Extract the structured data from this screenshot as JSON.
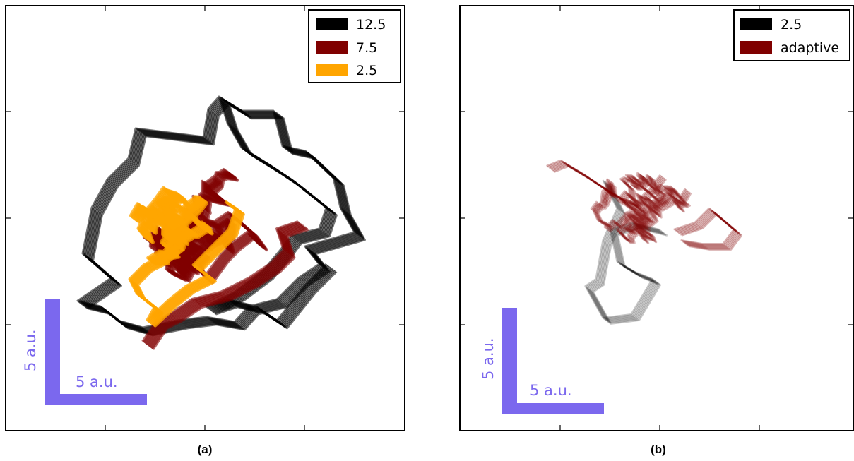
{
  "chart_data": [
    {
      "type": "line",
      "caption": "(a)",
      "legend_placement": "top-right",
      "series": [
        {
          "name": "12.5",
          "color": "#000000"
        },
        {
          "name": "7.5",
          "color": "#800000"
        },
        {
          "name": "2.5",
          "color": "#ffa500"
        }
      ],
      "scale_bar": {
        "x_label": "5 a.u.",
        "y_label": "5 a.u.",
        "color": "#7b68ee"
      }
    },
    {
      "type": "line",
      "caption": "(b)",
      "legend_placement": "top-right",
      "series": [
        {
          "name": "2.5",
          "color": "#000000"
        },
        {
          "name": "adaptive",
          "color": "#800000"
        }
      ],
      "scale_bar": {
        "x_label": "5 a.u.",
        "y_label": "5 a.u.",
        "color": "#7b68ee"
      }
    }
  ]
}
